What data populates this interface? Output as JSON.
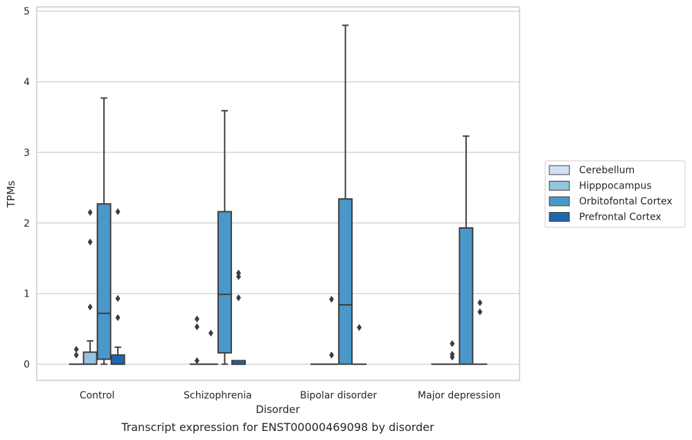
{
  "chart_data": {
    "type": "boxplot",
    "caption": "Transcript expression for ENST00000469098 by disorder",
    "xlabel": "Disorder",
    "ylabel": "TPMs",
    "ylim": [
      -0.23,
      5.06
    ],
    "yticks": [
      0,
      1,
      2,
      3,
      4,
      5
    ],
    "grid": true,
    "legend_position": "right",
    "categories": [
      "Control",
      "Schizophrenia",
      "Bipolar disorder",
      "Major depression"
    ],
    "series": [
      {
        "name": "Cerebellum",
        "color": "#d0e1f2",
        "boxes": [
          {
            "q1": 0,
            "median": 0,
            "q3": 0,
            "whisker_low": 0,
            "whisker_high": 0,
            "outliers": [
              0.13,
              0.21
            ]
          },
          {
            "q1": 0,
            "median": 0,
            "q3": 0,
            "whisker_low": 0,
            "whisker_high": 0,
            "outliers": [
              0.05,
              0.53,
              0.64
            ]
          },
          {
            "q1": 0,
            "median": 0,
            "q3": 0,
            "whisker_low": 0,
            "whisker_high": 0,
            "outliers": []
          },
          {
            "q1": 0,
            "median": 0,
            "q3": 0,
            "whisker_low": 0,
            "whisker_high": 0,
            "outliers": []
          }
        ]
      },
      {
        "name": "Hipppocampus",
        "color": "#94c4df",
        "boxes": [
          {
            "q1": 0,
            "median": 0,
            "q3": 0.17,
            "whisker_low": 0,
            "whisker_high": 0.33,
            "outliers": [
              0.81,
              1.73,
              2.15
            ]
          },
          {
            "q1": 0,
            "median": 0,
            "q3": 0,
            "whisker_low": 0,
            "whisker_high": 0,
            "outliers": [
              0.44
            ]
          },
          {
            "q1": 0,
            "median": 0,
            "q3": 0,
            "whisker_low": 0,
            "whisker_high": 0,
            "outliers": [
              0.13,
              0.92
            ]
          },
          {
            "q1": 0,
            "median": 0,
            "q3": 0,
            "whisker_low": 0,
            "whisker_high": 0,
            "outliers": [
              0.1,
              0.14,
              0.29
            ]
          }
        ]
      },
      {
        "name": "Orbitofontal Cortex",
        "color": "#4a98c9",
        "boxes": [
          {
            "q1": 0.07,
            "median": 0.72,
            "q3": 2.27,
            "whisker_low": 0,
            "whisker_high": 3.77,
            "outliers": []
          },
          {
            "q1": 0.16,
            "median": 0.99,
            "q3": 2.16,
            "whisker_low": 0,
            "whisker_high": 3.59,
            "outliers": []
          },
          {
            "q1": 0,
            "median": 0.84,
            "q3": 2.34,
            "whisker_low": 0,
            "whisker_high": 4.8,
            "outliers": []
          },
          {
            "q1": 0,
            "median": 0,
            "q3": 1.93,
            "whisker_low": 0,
            "whisker_high": 3.23,
            "outliers": []
          }
        ]
      },
      {
        "name": "Prefrontal Cortex",
        "color": "#2166ac",
        "boxes": [
          {
            "q1": 0,
            "median": 0,
            "q3": 0.13,
            "whisker_low": 0,
            "whisker_high": 0.24,
            "outliers": [
              0.66,
              0.93,
              2.16
            ]
          },
          {
            "q1": 0,
            "median": 0,
            "q3": 0.05,
            "whisker_low": 0,
            "whisker_high": 0.05,
            "outliers": [
              0.94,
              1.24,
              1.29
            ]
          },
          {
            "q1": 0,
            "median": 0,
            "q3": 0,
            "whisker_low": 0,
            "whisker_high": 0,
            "outliers": [
              0.52
            ]
          },
          {
            "q1": 0,
            "median": 0,
            "q3": 0,
            "whisker_low": 0,
            "whisker_high": 0,
            "outliers": [
              0.74,
              0.87
            ]
          }
        ]
      }
    ]
  }
}
